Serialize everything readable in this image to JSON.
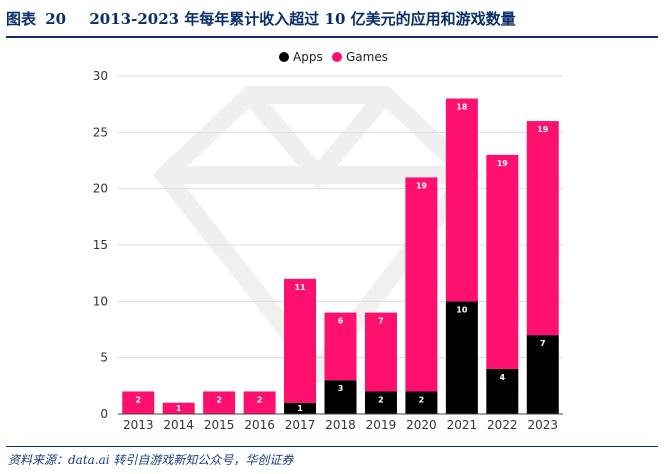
{
  "header": {
    "figure_label": "图表",
    "figure_number": "20",
    "title": "2013-2023 年每年累计收入超过 10 亿美元的应用和游戏数量"
  },
  "source": "资料来源：data.ai 转引自游戏新知公众号，华创证券",
  "colors": {
    "apps": "#000000",
    "games": "#ff0f6e",
    "title": "#0a2e6a",
    "grid": "#dddddd"
  },
  "chart_data": {
    "type": "bar",
    "stacked": true,
    "categories": [
      "2013",
      "2014",
      "2015",
      "2016",
      "2017",
      "2018",
      "2019",
      "2020",
      "2021",
      "2022",
      "2023"
    ],
    "series": [
      {
        "name": "Apps",
        "values": [
          0,
          0,
          0,
          0,
          1,
          3,
          2,
          2,
          10,
          4,
          7
        ]
      },
      {
        "name": "Games",
        "values": [
          2,
          1,
          2,
          2,
          11,
          6,
          7,
          19,
          18,
          19,
          19
        ]
      }
    ],
    "ylim": [
      0,
      30
    ],
    "yticks": [
      0,
      5,
      10,
      15,
      20,
      25,
      30
    ],
    "grid": true,
    "legend": "top-center"
  }
}
